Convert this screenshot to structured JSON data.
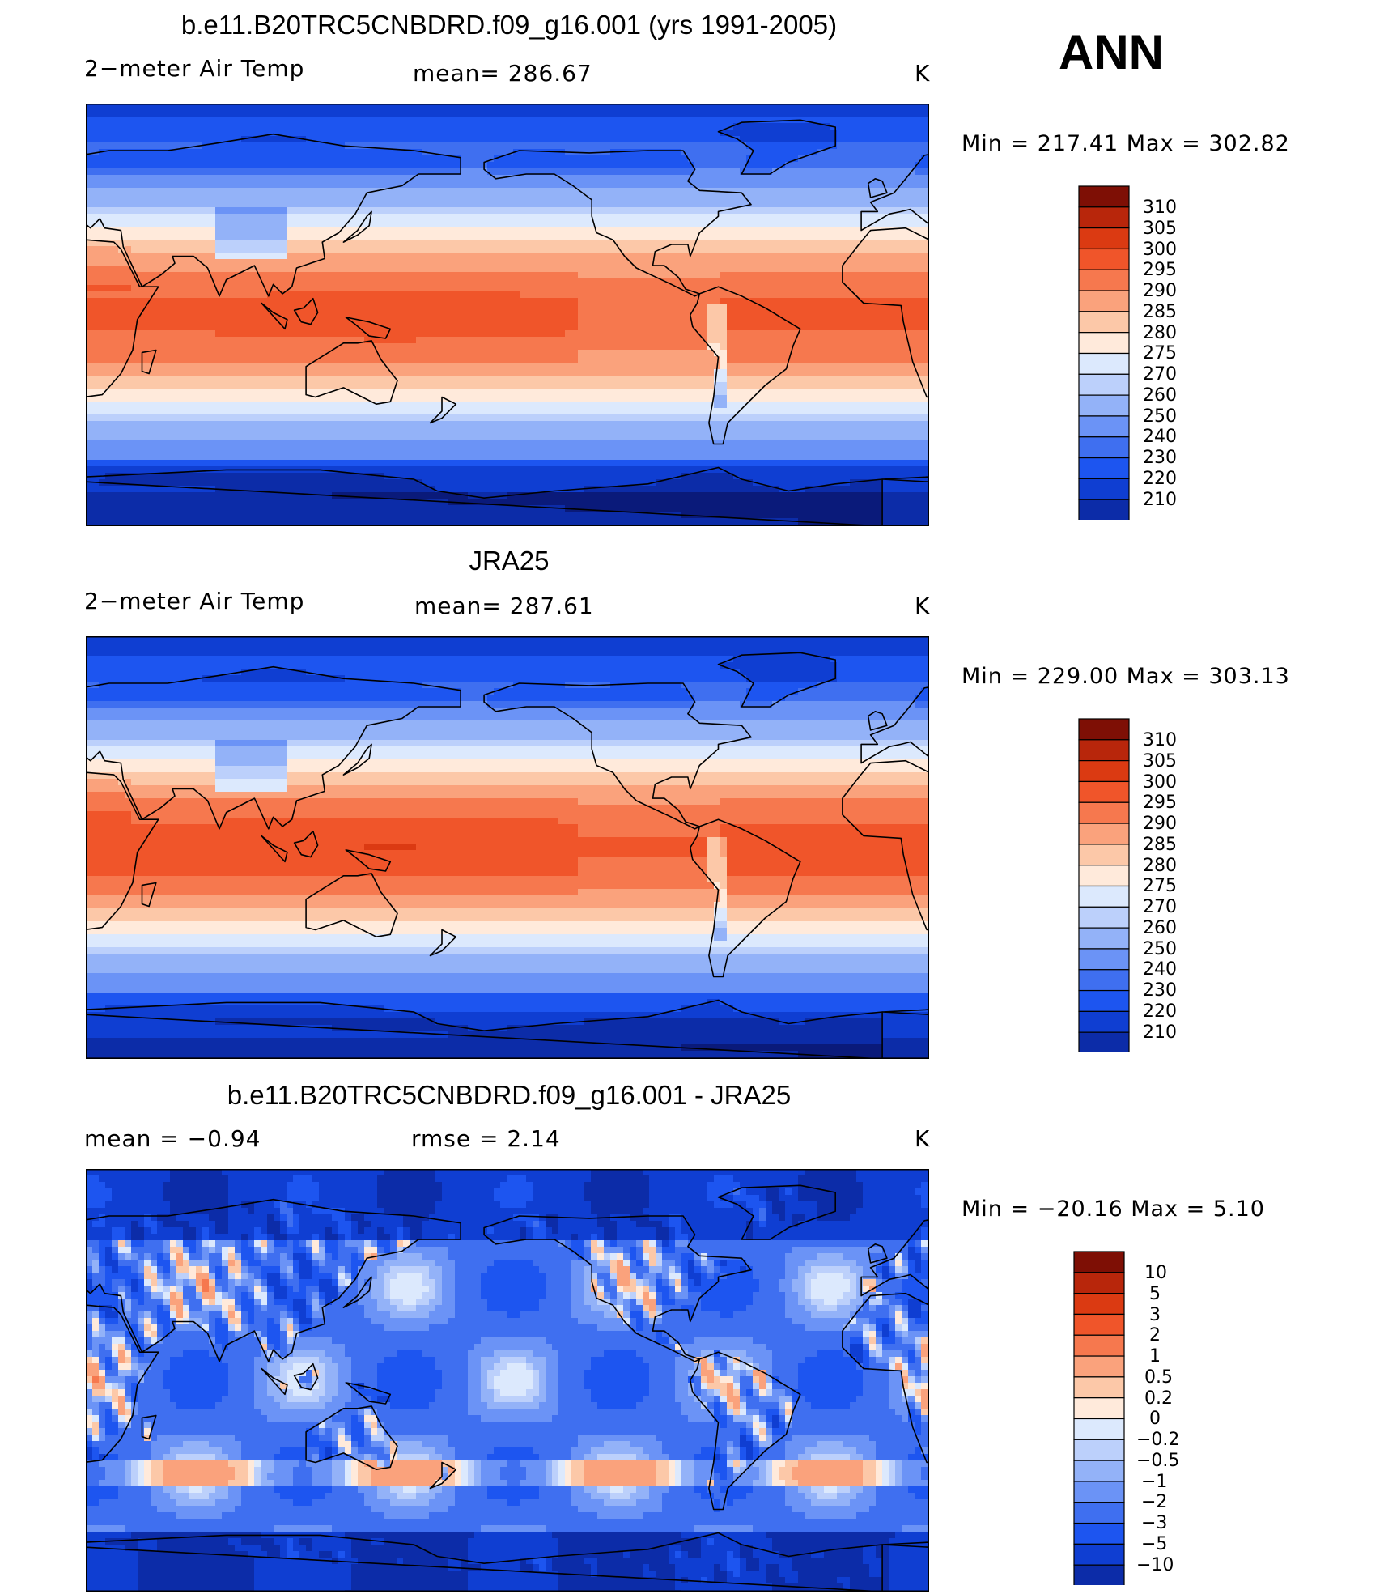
{
  "header": {
    "season": "ANN"
  },
  "palettes": {
    "absolute": [
      "#0a1a7a",
      "#0c2ca8",
      "#0f3ed2",
      "#1d55f0",
      "#3f6ff0",
      "#6b93f6",
      "#93b2f8",
      "#bcd0fb",
      "#dce9fd",
      "#ffeadb",
      "#fcc8a8",
      "#faa27c",
      "#f6784e",
      "#f0552a",
      "#db3a12",
      "#b8260b",
      "#7e0f05"
    ],
    "difference": [
      "#0a1a7a",
      "#0c2ca8",
      "#0f3ed2",
      "#1d55f0",
      "#3f6ff0",
      "#6b93f6",
      "#93b2f8",
      "#bcd0fb",
      "#dce9fd",
      "#ffeadb",
      "#fcc8a8",
      "#faa27c",
      "#f6784e",
      "#f0552a",
      "#db3a12",
      "#b8260b",
      "#7e0f05"
    ]
  },
  "chart_data": [
    {
      "type": "heatmap",
      "title": "b.e11.B20TRC5CNBDRD.f09_g16.001 (yrs 1991-2005)",
      "left_label": "2−meter Air Temp",
      "center_label": "mean=  286.67",
      "units": "K",
      "variable": "2-meter Air Temp",
      "mean": 286.67,
      "min": 217.41,
      "max": 302.82,
      "minmax_text": "Min  =  217.41  Max  =  302.82",
      "contour_levels": [
        310,
        305,
        300,
        295,
        290,
        285,
        280,
        275,
        270,
        260,
        250,
        240,
        230,
        220,
        210
      ],
      "level_labels": [
        "310",
        "305",
        "300",
        "295",
        "290",
        "285",
        "280",
        "275",
        "270",
        "260",
        "250",
        "240",
        "230",
        "220",
        "210"
      ],
      "field_model": "model"
    },
    {
      "type": "heatmap",
      "title": "JRA25",
      "left_label": "2−meter Air Temp",
      "center_label": "mean=  287.61",
      "units": "K",
      "variable": "2-meter Air Temp",
      "mean": 287.61,
      "min": 229.0,
      "max": 303.13,
      "minmax_text": "Min  =  229.00  Max  =  303.13",
      "contour_levels": [
        310,
        305,
        300,
        295,
        290,
        285,
        280,
        275,
        270,
        260,
        250,
        240,
        230,
        220,
        210
      ],
      "level_labels": [
        "310",
        "305",
        "300",
        "295",
        "290",
        "285",
        "280",
        "275",
        "270",
        "260",
        "250",
        "240",
        "230",
        "220",
        "210"
      ],
      "field_model": "obs"
    },
    {
      "type": "heatmap",
      "title": "b.e11.B20TRC5CNBDRD.f09_g16.001 - JRA25",
      "left_label": "mean  =    −0.94",
      "center_label": "rmse  =     2.14",
      "units": "K",
      "mean": -0.94,
      "rmse": 2.14,
      "min": -20.16,
      "max": 5.1,
      "minmax_text": "Min  =  −20.16  Max  =      5.10",
      "contour_levels": [
        10,
        5,
        3,
        2,
        1,
        0.5,
        0.2,
        0,
        -0.2,
        -0.5,
        -1,
        -2,
        -3,
        -5,
        -10
      ],
      "level_labels": [
        "10",
        "5",
        "3",
        "2",
        "1",
        "0.5",
        "0.2",
        "0",
        "−0.2",
        "−0.5",
        "−1",
        "−2",
        "−3",
        "−5",
        "−10"
      ],
      "field_model": "diff"
    }
  ]
}
